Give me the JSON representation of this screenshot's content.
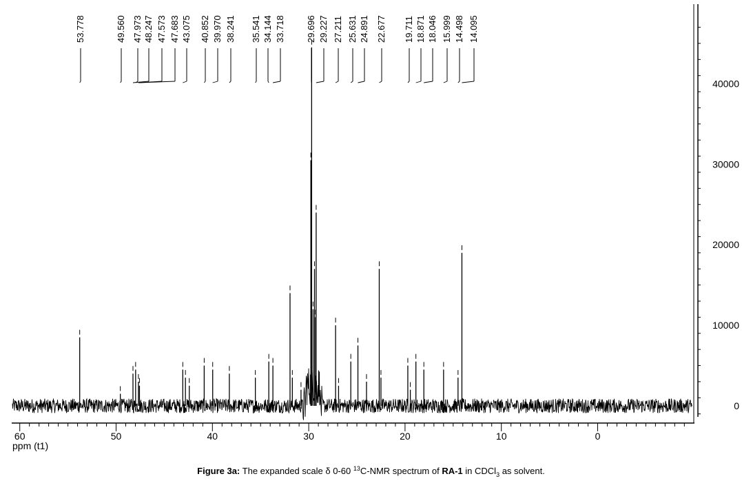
{
  "chart_data": {
    "type": "line",
    "title": "",
    "xlabel": "ppm (t1)",
    "ylabel": "",
    "xlim": [
      60,
      -10
    ],
    "ylim": [
      -1500,
      49000
    ],
    "x_ticks": [
      60,
      50,
      40,
      30,
      20,
      10,
      0
    ],
    "y_ticks": [
      0,
      10000,
      20000,
      30000,
      40000
    ],
    "peak_labels": [
      "53.778",
      "49.560",
      "47.973",
      "48.247",
      "47.573",
      "47.683",
      "43.075",
      "40.852",
      "39.970",
      "38.241",
      "35.541",
      "34.144",
      "33.718",
      "29.696",
      "29.227",
      "27.211",
      "25.631",
      "24.891",
      "22.677",
      "19.711",
      "18.871",
      "18.046",
      "15.999",
      "14.498",
      "14.095"
    ],
    "series": [
      {
        "peaks": [
          {
            "x": 53.778,
            "y": 8500
          },
          {
            "x": 49.56,
            "y": 1500
          },
          {
            "x": 48.247,
            "y": 4000
          },
          {
            "x": 47.973,
            "y": 4500
          },
          {
            "x": 47.683,
            "y": 3000
          },
          {
            "x": 47.573,
            "y": 2500
          },
          {
            "x": 43.075,
            "y": 4500
          },
          {
            "x": 42.8,
            "y": 3500
          },
          {
            "x": 42.4,
            "y": 2500
          },
          {
            "x": 40.852,
            "y": 5000
          },
          {
            "x": 39.97,
            "y": 4500
          },
          {
            "x": 38.241,
            "y": 4000
          },
          {
            "x": 35.541,
            "y": 3500
          },
          {
            "x": 34.144,
            "y": 5500
          },
          {
            "x": 33.718,
            "y": 5000
          },
          {
            "x": 31.94,
            "y": 14000
          },
          {
            "x": 31.7,
            "y": 3500
          },
          {
            "x": 30.8,
            "y": 2000
          },
          {
            "x": 29.78,
            "y": 30500
          },
          {
            "x": 29.696,
            "y": 44500
          },
          {
            "x": 29.55,
            "y": 12000
          },
          {
            "x": 29.4,
            "y": 17000
          },
          {
            "x": 29.35,
            "y": 11000
          },
          {
            "x": 29.227,
            "y": 24000
          },
          {
            "x": 27.211,
            "y": 10000
          },
          {
            "x": 26.9,
            "y": 2500
          },
          {
            "x": 25.631,
            "y": 5500
          },
          {
            "x": 24.891,
            "y": 7500
          },
          {
            "x": 24.0,
            "y": 3000
          },
          {
            "x": 22.677,
            "y": 17000
          },
          {
            "x": 22.5,
            "y": 3500
          },
          {
            "x": 19.711,
            "y": 5000
          },
          {
            "x": 19.45,
            "y": 2000
          },
          {
            "x": 18.871,
            "y": 5500
          },
          {
            "x": 18.046,
            "y": 4500
          },
          {
            "x": 15.999,
            "y": 4500
          },
          {
            "x": 14.498,
            "y": 3500
          },
          {
            "x": 14.095,
            "y": 19000
          }
        ]
      }
    ]
  },
  "caption": {
    "figure_label": "Figure 3a:",
    "text_before": "The expanded scale δ 0-60 ",
    "superscript": "13",
    "text_middle": "C-NMR spectrum of ",
    "compound": "RA-1",
    "text_after_compound": " in CDCl",
    "subscript": "3",
    "text_end": " as solvent."
  }
}
